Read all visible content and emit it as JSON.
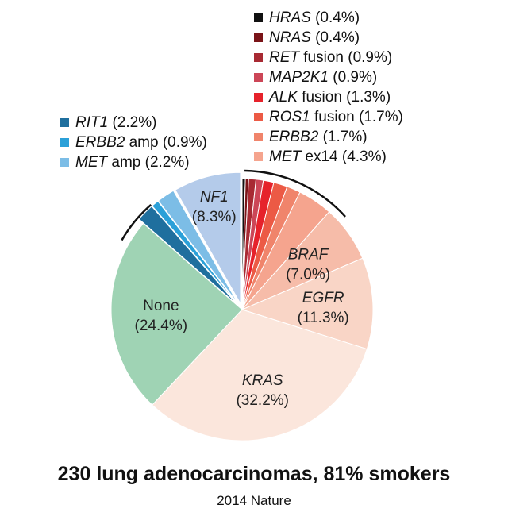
{
  "chart_data": {
    "type": "pie",
    "title": "230 lung adenocarcinomas, 81% smokers",
    "subtitle": "2014 Nature",
    "slices": [
      {
        "gene": "HRAS",
        "suffix": "",
        "value": 0.4,
        "pct": "(0.4%)",
        "color": "#111111",
        "italic": true
      },
      {
        "gene": "NRAS",
        "suffix": "",
        "value": 0.4,
        "pct": "(0.4%)",
        "color": "#7a1418",
        "italic": true
      },
      {
        "gene": "RET",
        "suffix": "fusion",
        "value": 0.9,
        "pct": "(0.9%)",
        "color": "#a82a33",
        "italic": true
      },
      {
        "gene": "MAP2K1",
        "suffix": "",
        "value": 0.9,
        "pct": "(0.9%)",
        "color": "#cc4657",
        "italic": true
      },
      {
        "gene": "ALK",
        "suffix": "fusion",
        "value": 1.3,
        "pct": "(1.3%)",
        "color": "#e6222b",
        "italic": true
      },
      {
        "gene": "ROS1",
        "suffix": "fusion",
        "value": 1.7,
        "pct": "(1.7%)",
        "color": "#ec5a45",
        "italic": true
      },
      {
        "gene": "ERBB2",
        "suffix": "",
        "value": 1.7,
        "pct": "(1.7%)",
        "color": "#f0846b",
        "italic": true
      },
      {
        "gene": "MET",
        "suffix": "ex14",
        "value": 4.3,
        "pct": "(4.3%)",
        "color": "#f5a48e",
        "italic": true
      },
      {
        "gene": "BRAF",
        "suffix": "",
        "value": 7.0,
        "pct": "(7.0%)",
        "color": "#f6bca9",
        "italic": true
      },
      {
        "gene": "EGFR",
        "suffix": "",
        "value": 11.3,
        "pct": "(11.3%)",
        "color": "#f9d5c6",
        "italic": true
      },
      {
        "gene": "KRAS",
        "suffix": "",
        "value": 32.2,
        "pct": "(32.2%)",
        "color": "#fbe6dc",
        "italic": true
      },
      {
        "gene": "None",
        "suffix": "",
        "value": 24.4,
        "pct": "(24.4%)",
        "color": "#9fd3b4",
        "italic": false
      },
      {
        "gene": "RIT1",
        "suffix": "",
        "value": 2.2,
        "pct": "(2.2%)",
        "color": "#1f6f9e",
        "italic": true
      },
      {
        "gene": "ERBB2",
        "suffix": "amp",
        "value": 0.9,
        "pct": "(0.9%)",
        "color": "#2ba0d8",
        "italic": true
      },
      {
        "gene": "MET",
        "suffix": "amp",
        "value": 2.2,
        "pct": "(2.2%)",
        "color": "#7cbde6",
        "italic": true
      },
      {
        "gene": "NF1",
        "suffix": "",
        "value": 8.3,
        "pct": "(8.3%)",
        "color": "#b4cbea",
        "italic": true
      }
    ],
    "legend_right": [
      0,
      1,
      2,
      3,
      4,
      5,
      6,
      7
    ],
    "legend_left": [
      12,
      13,
      14
    ],
    "labeled_slices": [
      8,
      9,
      10,
      11,
      15
    ]
  }
}
